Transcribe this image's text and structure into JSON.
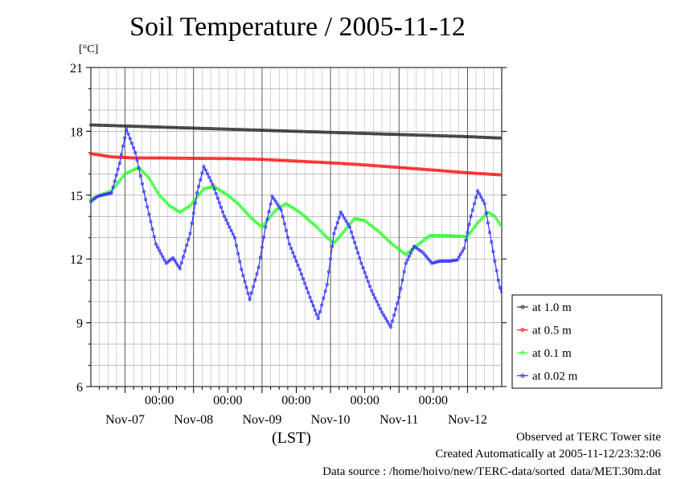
{
  "chart_data": {
    "type": "line",
    "title": "Soil Temperature / 2005-11-12",
    "ylabel": "[°C]",
    "xlabel": "(LST)",
    "ylim": [
      6,
      21
    ],
    "yticks": [
      "21",
      "18",
      "15",
      "12",
      "9",
      "6"
    ],
    "xticks_time": [
      "00:00",
      "00:00",
      "00:00",
      "00:00",
      "00:00"
    ],
    "xticks_date": [
      "Nov-07",
      "Nov-08",
      "Nov-09",
      "Nov-10",
      "Nov-11",
      "Nov-12"
    ],
    "legend_position": "right",
    "series": [
      {
        "name": "at 1.0 m",
        "color": "#333333",
        "points": [
          [
            0,
            18.3
          ],
          [
            0.5,
            18.25
          ],
          [
            1,
            18.2
          ],
          [
            1.5,
            18.15
          ],
          [
            2,
            18.1
          ],
          [
            2.5,
            18.05
          ],
          [
            3,
            18.0
          ],
          [
            3.5,
            17.95
          ],
          [
            4,
            17.9
          ],
          [
            4.5,
            17.85
          ],
          [
            5,
            17.8
          ],
          [
            5.5,
            17.75
          ],
          [
            6,
            17.68
          ]
        ]
      },
      {
        "name": "at 0.5 m",
        "color": "#ff2020",
        "points": [
          [
            0,
            16.95
          ],
          [
            0.3,
            16.8
          ],
          [
            0.6,
            16.75
          ],
          [
            1,
            16.75
          ],
          [
            1.5,
            16.73
          ],
          [
            2,
            16.72
          ],
          [
            2.5,
            16.68
          ],
          [
            3,
            16.6
          ],
          [
            3.5,
            16.52
          ],
          [
            4,
            16.42
          ],
          [
            4.5,
            16.3
          ],
          [
            5,
            16.18
          ],
          [
            5.5,
            16.05
          ],
          [
            6,
            15.95
          ]
        ]
      },
      {
        "name": "at 0.1 m",
        "color": "#30ff30",
        "points": [
          [
            0,
            14.8
          ],
          [
            0.1,
            14.95
          ],
          [
            0.3,
            15.2
          ],
          [
            0.5,
            16.0
          ],
          [
            0.7,
            16.3
          ],
          [
            0.85,
            15.8
          ],
          [
            1.0,
            15.0
          ],
          [
            1.15,
            14.5
          ],
          [
            1.3,
            14.2
          ],
          [
            1.45,
            14.5
          ],
          [
            1.65,
            15.3
          ],
          [
            1.8,
            15.4
          ],
          [
            2.0,
            15.0
          ],
          [
            2.15,
            14.6
          ],
          [
            2.35,
            13.9
          ],
          [
            2.5,
            13.5
          ],
          [
            2.7,
            14.3
          ],
          [
            2.85,
            14.6
          ],
          [
            3.05,
            14.2
          ],
          [
            3.3,
            13.5
          ],
          [
            3.45,
            13.0
          ],
          [
            3.55,
            12.75
          ],
          [
            3.7,
            13.3
          ],
          [
            3.85,
            13.9
          ],
          [
            4.0,
            13.8
          ],
          [
            4.2,
            13.3
          ],
          [
            4.4,
            12.7
          ],
          [
            4.6,
            12.2
          ],
          [
            4.75,
            12.6
          ],
          [
            4.95,
            13.1
          ],
          [
            5.2,
            13.1
          ],
          [
            5.5,
            13.05
          ],
          [
            5.65,
            13.7
          ],
          [
            5.8,
            14.2
          ],
          [
            5.9,
            14.0
          ],
          [
            6.0,
            13.5
          ]
        ]
      },
      {
        "name": "at 0.02 m",
        "color": "#3030ff",
        "points": [
          [
            0,
            14.7
          ],
          [
            0.1,
            14.95
          ],
          [
            0.3,
            15.1
          ],
          [
            0.42,
            16.5
          ],
          [
            0.52,
            18.1
          ],
          [
            0.65,
            17.0
          ],
          [
            0.8,
            14.8
          ],
          [
            0.95,
            12.7
          ],
          [
            1.1,
            11.8
          ],
          [
            1.2,
            12.05
          ],
          [
            1.3,
            11.55
          ],
          [
            1.45,
            13.2
          ],
          [
            1.55,
            15.1
          ],
          [
            1.65,
            16.35
          ],
          [
            1.78,
            15.5
          ],
          [
            1.95,
            14.0
          ],
          [
            2.1,
            13.0
          ],
          [
            2.2,
            11.5
          ],
          [
            2.32,
            10.1
          ],
          [
            2.45,
            11.6
          ],
          [
            2.55,
            13.5
          ],
          [
            2.65,
            14.95
          ],
          [
            2.78,
            14.3
          ],
          [
            2.9,
            12.7
          ],
          [
            3.05,
            11.5
          ],
          [
            3.2,
            10.2
          ],
          [
            3.32,
            9.2
          ],
          [
            3.45,
            10.8
          ],
          [
            3.55,
            13.2
          ],
          [
            3.65,
            14.2
          ],
          [
            3.78,
            13.5
          ],
          [
            3.95,
            11.8
          ],
          [
            4.1,
            10.5
          ],
          [
            4.25,
            9.5
          ],
          [
            4.38,
            8.8
          ],
          [
            4.5,
            10.2
          ],
          [
            4.6,
            11.8
          ],
          [
            4.72,
            12.6
          ],
          [
            4.85,
            12.3
          ],
          [
            4.98,
            11.8
          ],
          [
            5.1,
            11.9
          ],
          [
            5.25,
            11.9
          ],
          [
            5.35,
            11.95
          ],
          [
            5.45,
            12.5
          ],
          [
            5.55,
            14.0
          ],
          [
            5.65,
            15.2
          ],
          [
            5.75,
            14.6
          ],
          [
            5.85,
            12.8
          ],
          [
            5.95,
            11.0
          ],
          [
            6.0,
            10.3
          ]
        ]
      }
    ]
  },
  "footer": {
    "line1": "Observed at TERC Tower site",
    "line2": "Created Automatically at 2005-11-12/23:32:06",
    "line3": "Data source : /home/hoivo/new/TERC-data/sorted  data/MET.30m.dat"
  }
}
